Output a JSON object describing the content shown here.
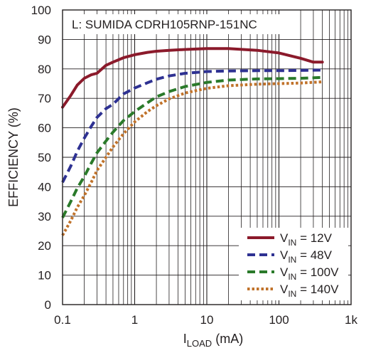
{
  "chart_data": {
    "type": "line",
    "title": "",
    "annotation": "L: SUMIDA CDRH105RNP-151NC",
    "ylabel": "EFFICIENCY (%)",
    "xlabel": {
      "main": "I",
      "sub": "LOAD",
      "suffix": " (mA)"
    },
    "x_scale": "log",
    "xlim": [
      0.1,
      1000
    ],
    "ylim": [
      0,
      100
    ],
    "x_ticks": [
      {
        "value": 0.1,
        "label": "0.1"
      },
      {
        "value": 1,
        "label": "1"
      },
      {
        "value": 10,
        "label": "10"
      },
      {
        "value": 100,
        "label": "100"
      },
      {
        "value": 1000,
        "label": "1k"
      }
    ],
    "y_ticks": [
      0,
      10,
      20,
      30,
      40,
      50,
      60,
      70,
      80,
      90,
      100
    ],
    "y_tick_labels": [
      "0",
      "10",
      "20",
      "30",
      "40",
      "50",
      "60",
      "70",
      "80",
      "90",
      "100"
    ],
    "grid": true,
    "legend_position": "bottom-right",
    "series": [
      {
        "label_main": "V",
        "label_sub": "IN",
        "label_value": " = 12V",
        "color": "#8b1a2b",
        "dash": "solid",
        "x": [
          0.1,
          0.13,
          0.16,
          0.2,
          0.25,
          0.3,
          0.4,
          0.5,
          0.7,
          1,
          1.5,
          2,
          3,
          5,
          10,
          20,
          50,
          100,
          200,
          300,
          400
        ],
        "y": [
          67,
          71,
          74.5,
          76.8,
          78,
          78.5,
          81.2,
          82.3,
          83.8,
          84.8,
          85.6,
          86,
          86.3,
          86.6,
          86.9,
          86.9,
          86.3,
          85.4,
          83.6,
          82.3,
          82.3
        ]
      },
      {
        "label_main": "V",
        "label_sub": "IN",
        "label_value": " = 48V",
        "color": "#2e3192",
        "dash": "dash",
        "x": [
          0.1,
          0.13,
          0.16,
          0.2,
          0.25,
          0.3,
          0.4,
          0.5,
          0.7,
          1,
          1.5,
          2,
          3,
          5,
          10,
          20,
          50,
          100,
          200,
          400
        ],
        "y": [
          41.5,
          47,
          52,
          56.5,
          60.5,
          63.5,
          66.5,
          68,
          71.5,
          73.5,
          75.3,
          76.5,
          77.6,
          78.5,
          79.1,
          79.3,
          79.4,
          79.4,
          79.5,
          79.6
        ]
      },
      {
        "label_main": "V",
        "label_sub": "IN",
        "label_value": " = 100V",
        "color": "#2a7a2a",
        "dash": "dash",
        "x": [
          0.1,
          0.13,
          0.16,
          0.2,
          0.25,
          0.3,
          0.4,
          0.5,
          0.7,
          1,
          1.5,
          2,
          3,
          5,
          10,
          20,
          50,
          100,
          200,
          400
        ],
        "y": [
          29.5,
          35,
          39.5,
          43.5,
          48,
          51.5,
          55.5,
          58.5,
          62.5,
          65.5,
          68.5,
          70.5,
          72.3,
          74,
          75.4,
          76.2,
          76.6,
          76.7,
          76.8,
          77.1
        ]
      },
      {
        "label_main": "V",
        "label_sub": "IN",
        "label_value": " = 140V",
        "color": "#c0722a",
        "dash": "dot",
        "x": [
          0.1,
          0.13,
          0.16,
          0.2,
          0.25,
          0.3,
          0.4,
          0.5,
          0.7,
          1,
          1.5,
          2,
          3,
          5,
          10,
          20,
          50,
          100,
          200,
          400
        ],
        "y": [
          23.5,
          28.5,
          33,
          37,
          41.5,
          45.5,
          50,
          53.5,
          58,
          62,
          65.5,
          67.5,
          69.8,
          71.8,
          73.4,
          74.3,
          74.8,
          75,
          75.2,
          75.6
        ]
      }
    ]
  }
}
